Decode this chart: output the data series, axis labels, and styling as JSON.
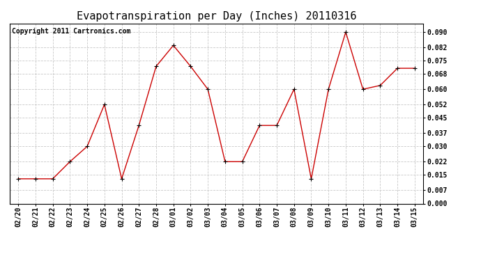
{
  "title": "Evapotranspiration per Day (Inches) 20110316",
  "copyright": "Copyright 2011 Cartronics.com",
  "x_labels": [
    "02/20",
    "02/21",
    "02/22",
    "02/23",
    "02/24",
    "02/25",
    "02/26",
    "02/27",
    "02/28",
    "03/01",
    "03/02",
    "03/03",
    "03/04",
    "03/05",
    "03/06",
    "03/07",
    "03/08",
    "03/09",
    "03/10",
    "03/11",
    "03/12",
    "03/13",
    "03/14",
    "03/15"
  ],
  "y_values": [
    0.013,
    0.013,
    0.013,
    0.022,
    0.03,
    0.052,
    0.013,
    0.041,
    0.072,
    0.083,
    0.072,
    0.06,
    0.022,
    0.022,
    0.041,
    0.041,
    0.06,
    0.013,
    0.06,
    0.09,
    0.06,
    0.062,
    0.071,
    0.071
  ],
  "line_color": "#cc0000",
  "marker": "+",
  "marker_color": "#000000",
  "background_color": "#ffffff",
  "grid_color": "#c8c8c8",
  "ylim": [
    0.0,
    0.0945
  ],
  "yticks": [
    0.0,
    0.007,
    0.015,
    0.022,
    0.03,
    0.037,
    0.045,
    0.052,
    0.06,
    0.068,
    0.075,
    0.082,
    0.09
  ],
  "title_fontsize": 11,
  "copyright_fontsize": 7,
  "tick_fontsize": 7,
  "ytick_fontsize": 7
}
